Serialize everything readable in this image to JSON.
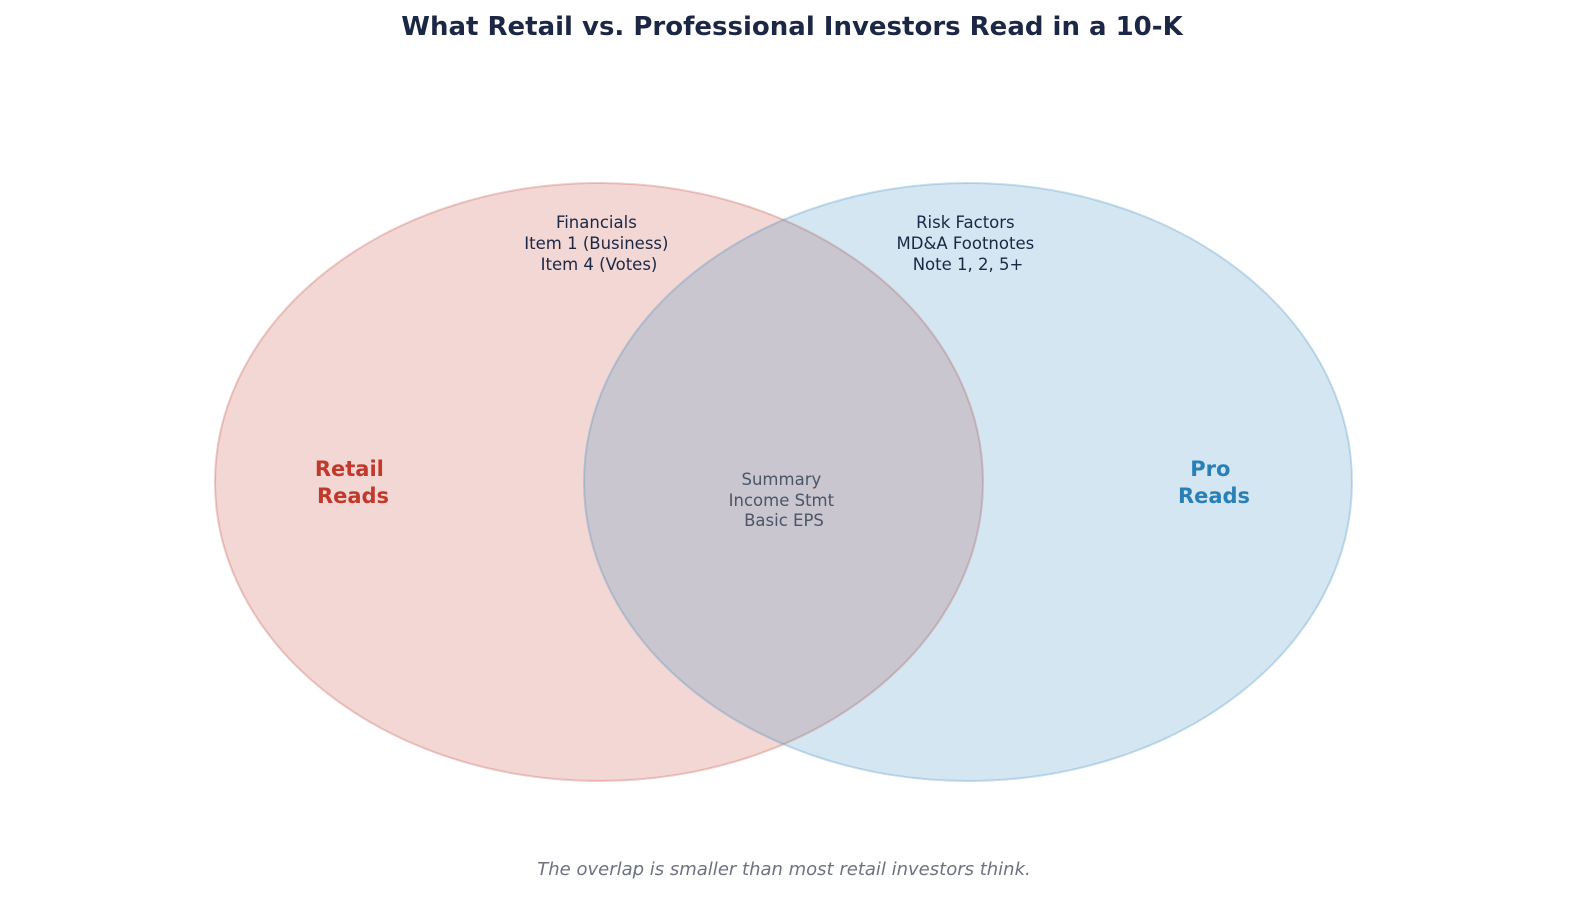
{
  "title": "What Retail vs. Professional Investors Read in a 10-K",
  "sets": [
    {
      "label_lines": [
        "Retail",
        "Reads"
      ],
      "color": "#c0392b",
      "fill_opacity": 0.2,
      "items": [
        "Financials",
        "Item 1 (Business)",
        "Item 4 (Votes)"
      ]
    },
    {
      "label_lines": [
        "Pro",
        "Reads"
      ],
      "color": "#2980b9",
      "fill_opacity": 0.2,
      "items": [
        "Risk Factors",
        "MD&A Footnotes",
        "Note 1, 2, 5+"
      ]
    }
  ],
  "overlap": {
    "items": [
      "Summary",
      "Income Stmt",
      "Basic EPS"
    ]
  },
  "footer": "The overlap is smaller than most retail investors think."
}
